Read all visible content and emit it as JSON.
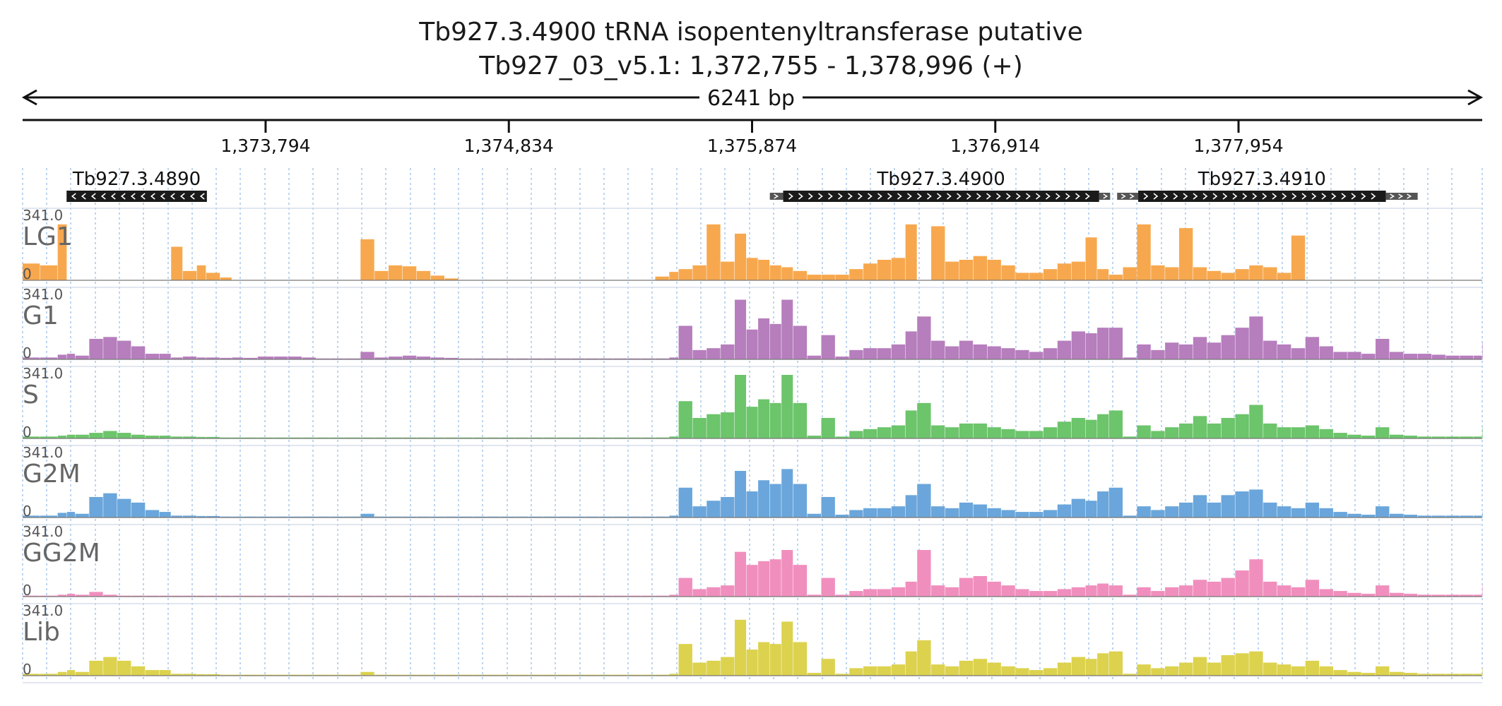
{
  "title": {
    "line1": "Tb927.3.4900  tRNA isopentenyltransferase  putative",
    "line2": "Tb927_03_v5.1: 1,372,755 - 1,378,996 (+)"
  },
  "ruler": {
    "span_label": "6241 bp",
    "region_start": 1372755,
    "region_end": 1378996,
    "ticks": [
      {
        "pos": 1373794,
        "label": "1,373,794"
      },
      {
        "pos": 1374834,
        "label": "1,374,834"
      },
      {
        "pos": 1375874,
        "label": "1,375,874"
      },
      {
        "pos": 1376914,
        "label": "1,376,914"
      },
      {
        "pos": 1377954,
        "label": "1,377,954"
      }
    ]
  },
  "colors": {
    "LG1": "#f7a84e",
    "G1": "#b67ebd",
    "S": "#6cc46b",
    "G2M": "#6aa6db",
    "GG2M": "#f08fbd",
    "Lib": "#dcd24e",
    "gene": "#1a1a1a",
    "gene_utr": "#555555",
    "grid": "#9fc3ea"
  },
  "genes": [
    {
      "name": "Tb927.3.4890",
      "strand": "-",
      "start": 1372943,
      "end": 1373543,
      "utr": []
    },
    {
      "name": "Tb927.3.4900",
      "strand": "+",
      "start": 1376007,
      "end": 1377358,
      "utr": [
        [
          1375950,
          1376007
        ],
        [
          1377358,
          1377405
        ]
      ]
    },
    {
      "name": "Tb927.3.4910",
      "strand": "+",
      "start": 1377525,
      "end": 1378584,
      "utr": [
        [
          1377435,
          1377525
        ],
        [
          1378584,
          1378720
        ]
      ]
    }
  ],
  "chart_data": {
    "type": "area",
    "x_unit": "bp",
    "xlim": [
      1372755,
      1378996
    ],
    "ylim": [
      0,
      341.0
    ],
    "ytick_labels": [
      "341.0",
      "0"
    ],
    "x": [
      1372755,
      1372830,
      1372905,
      1372945,
      1372980,
      1373040,
      1373100,
      1373160,
      1373220,
      1373280,
      1373340,
      1373390,
      1373440,
      1373500,
      1373540,
      1373600,
      1373650,
      1373700,
      1373760,
      1373830,
      1373890,
      1373950,
      1374010,
      1374070,
      1374130,
      1374200,
      1374260,
      1374320,
      1374380,
      1374440,
      1374500,
      1374560,
      1374620,
      1374680,
      1374740,
      1374800,
      1374860,
      1374920,
      1374980,
      1375040,
      1375100,
      1375160,
      1375220,
      1375280,
      1375340,
      1375400,
      1375460,
      1375520,
      1375560,
      1375620,
      1375680,
      1375740,
      1375800,
      1375850,
      1375900,
      1375950,
      1376000,
      1376050,
      1376110,
      1376170,
      1376230,
      1376290,
      1376350,
      1376410,
      1376470,
      1376530,
      1376580,
      1376640,
      1376700,
      1376760,
      1376820,
      1376880,
      1376940,
      1377000,
      1377060,
      1377120,
      1377180,
      1377240,
      1377300,
      1377350,
      1377400,
      1377460,
      1377520,
      1377580,
      1377640,
      1377700,
      1377760,
      1377820,
      1377880,
      1377940,
      1378000,
      1378060,
      1378120,
      1378180,
      1378240,
      1378300,
      1378360,
      1378420,
      1378480,
      1378540,
      1378600,
      1378660,
      1378720,
      1378780,
      1378840,
      1378900,
      1378960,
      1378996
    ],
    "series": [
      {
        "name": "LG1",
        "values": [
          90,
          80,
          300,
          0,
          0,
          0,
          0,
          0,
          0,
          0,
          0,
          180,
          50,
          80,
          40,
          15,
          0,
          0,
          0,
          0,
          0,
          0,
          0,
          0,
          0,
          220,
          50,
          80,
          75,
          50,
          25,
          10,
          0,
          0,
          0,
          0,
          0,
          0,
          0,
          0,
          0,
          0,
          0,
          0,
          0,
          0,
          20,
          45,
          60,
          80,
          300,
          100,
          250,
          120,
          110,
          80,
          70,
          50,
          30,
          30,
          30,
          60,
          90,
          110,
          120,
          300,
          0,
          290,
          100,
          110,
          130,
          110,
          80,
          40,
          40,
          60,
          90,
          100,
          230,
          60,
          30,
          70,
          300,
          80,
          70,
          280,
          70,
          50,
          40,
          60,
          80,
          70,
          40,
          240,
          0,
          0,
          0,
          0,
          0,
          0,
          0,
          0,
          0,
          0,
          0,
          0,
          0,
          0
        ]
      },
      {
        "name": "G1",
        "values": [
          10,
          10,
          25,
          30,
          20,
          110,
          120,
          100,
          70,
          30,
          30,
          10,
          15,
          10,
          10,
          8,
          10,
          8,
          15,
          15,
          15,
          10,
          5,
          5,
          5,
          40,
          10,
          15,
          20,
          15,
          10,
          8,
          5,
          5,
          5,
          5,
          5,
          5,
          5,
          5,
          5,
          5,
          5,
          5,
          5,
          5,
          5,
          10,
          180,
          50,
          60,
          80,
          320,
          160,
          220,
          190,
          320,
          180,
          20,
          130,
          15,
          50,
          60,
          60,
          80,
          150,
          230,
          100,
          70,
          100,
          80,
          70,
          60,
          50,
          40,
          60,
          100,
          150,
          140,
          170,
          170,
          10,
          80,
          50,
          90,
          80,
          120,
          90,
          130,
          170,
          230,
          100,
          80,
          60,
          120,
          70,
          40,
          40,
          30,
          110,
          40,
          30,
          30,
          25,
          20,
          20,
          20,
          90
        ]
      },
      {
        "name": "S",
        "values": [
          10,
          10,
          15,
          20,
          20,
          30,
          40,
          30,
          20,
          15,
          15,
          10,
          10,
          8,
          8,
          5,
          5,
          5,
          5,
          5,
          5,
          5,
          5,
          5,
          5,
          5,
          5,
          5,
          5,
          5,
          5,
          5,
          5,
          5,
          5,
          5,
          5,
          5,
          5,
          5,
          5,
          5,
          5,
          5,
          5,
          5,
          5,
          10,
          200,
          110,
          130,
          140,
          341,
          170,
          210,
          190,
          341,
          190,
          15,
          110,
          10,
          40,
          50,
          60,
          70,
          150,
          190,
          70,
          60,
          80,
          80,
          60,
          50,
          40,
          40,
          60,
          90,
          110,
          100,
          130,
          150,
          10,
          70,
          40,
          60,
          80,
          120,
          80,
          110,
          130,
          180,
          80,
          60,
          60,
          70,
          50,
          30,
          20,
          15,
          60,
          20,
          15,
          10,
          10,
          10,
          10,
          10,
          60
        ]
      },
      {
        "name": "G2M",
        "values": [
          10,
          10,
          25,
          30,
          20,
          110,
          130,
          100,
          80,
          40,
          30,
          10,
          10,
          8,
          8,
          5,
          5,
          5,
          5,
          5,
          5,
          5,
          5,
          5,
          5,
          20,
          5,
          5,
          5,
          5,
          5,
          5,
          5,
          5,
          5,
          5,
          5,
          5,
          5,
          5,
          5,
          5,
          5,
          5,
          5,
          5,
          5,
          10,
          160,
          60,
          90,
          110,
          250,
          140,
          200,
          180,
          260,
          180,
          20,
          110,
          15,
          40,
          50,
          50,
          60,
          120,
          180,
          60,
          50,
          80,
          70,
          50,
          40,
          30,
          30,
          40,
          70,
          100,
          90,
          140,
          160,
          10,
          60,
          40,
          60,
          80,
          120,
          80,
          120,
          140,
          150,
          80,
          60,
          50,
          80,
          50,
          30,
          20,
          15,
          60,
          20,
          15,
          10,
          10,
          10,
          10,
          10,
          30
        ]
      },
      {
        "name": "GG2M",
        "values": [
          5,
          5,
          10,
          15,
          10,
          25,
          10,
          5,
          5,
          5,
          5,
          5,
          5,
          5,
          5,
          5,
          5,
          5,
          5,
          5,
          5,
          5,
          5,
          5,
          5,
          5,
          5,
          5,
          5,
          5,
          5,
          5,
          5,
          5,
          5,
          5,
          5,
          5,
          5,
          5,
          5,
          5,
          5,
          5,
          5,
          5,
          5,
          10,
          100,
          40,
          50,
          60,
          240,
          170,
          190,
          200,
          250,
          170,
          10,
          100,
          10,
          30,
          40,
          40,
          50,
          80,
          250,
          60,
          50,
          100,
          110,
          80,
          60,
          40,
          30,
          30,
          40,
          50,
          60,
          70,
          60,
          10,
          50,
          30,
          50,
          60,
          90,
          80,
          100,
          140,
          200,
          80,
          60,
          50,
          90,
          40,
          30,
          20,
          15,
          60,
          20,
          15,
          10,
          10,
          10,
          10,
          10,
          60
        ]
      },
      {
        "name": "Lib",
        "values": [
          10,
          10,
          20,
          30,
          20,
          80,
          100,
          80,
          50,
          30,
          30,
          10,
          10,
          8,
          8,
          5,
          5,
          5,
          5,
          5,
          5,
          5,
          5,
          5,
          5,
          20,
          5,
          5,
          5,
          5,
          5,
          5,
          5,
          5,
          5,
          5,
          5,
          5,
          5,
          5,
          5,
          5,
          5,
          5,
          5,
          5,
          5,
          10,
          170,
          70,
          80,
          100,
          300,
          140,
          180,
          170,
          290,
          180,
          15,
          90,
          10,
          40,
          50,
          50,
          60,
          130,
          190,
          60,
          50,
          80,
          90,
          70,
          50,
          40,
          30,
          40,
          70,
          100,
          90,
          120,
          130,
          10,
          60,
          40,
          50,
          70,
          100,
          70,
          110,
          120,
          130,
          70,
          60,
          50,
          80,
          50,
          30,
          20,
          15,
          50,
          20,
          15,
          10,
          10,
          10,
          10,
          10,
          40
        ]
      }
    ]
  }
}
